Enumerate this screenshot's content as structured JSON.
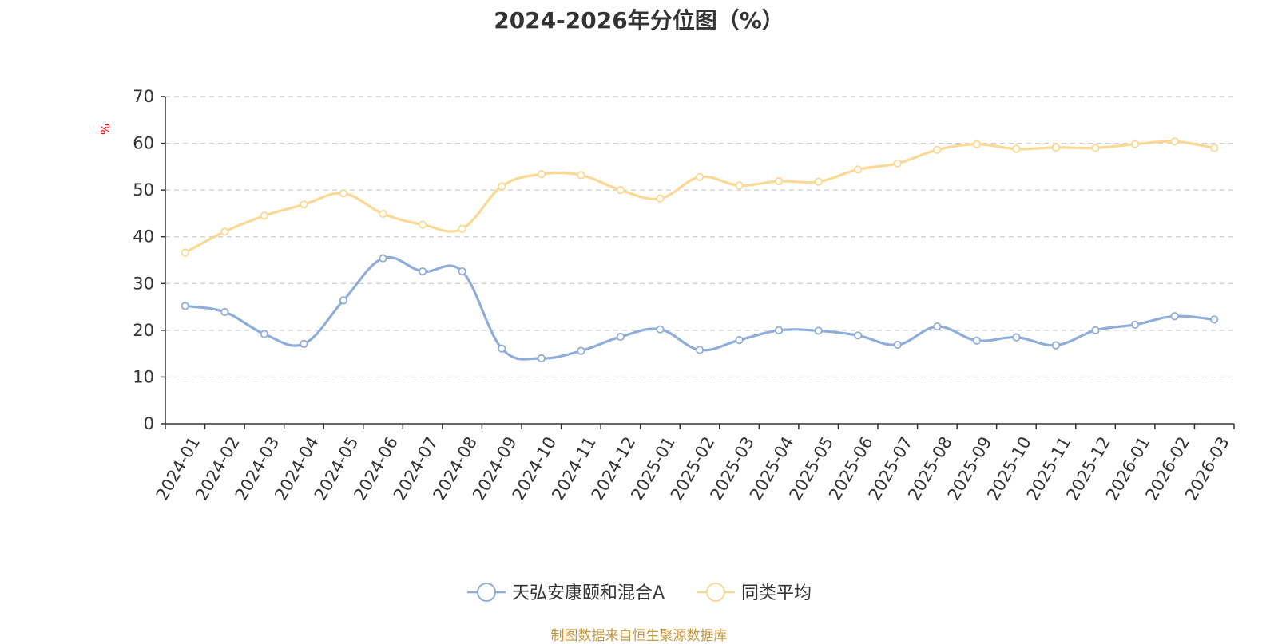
{
  "title": "2024-2026年分位图（%）",
  "source": "制图数据来自恒生聚源数据库",
  "colors": {
    "series1": "#8fadd9",
    "series2": "#fbd893",
    "grid": "#cccccc",
    "axis": "#333333",
    "unit": "#ff0000",
    "source": "#c8963c"
  },
  "chart_data": {
    "type": "line",
    "title": "2024-2026年分位图（%）",
    "ylabel": "%",
    "xlabel": "",
    "ylim": [
      0,
      70
    ],
    "yticks": [
      0,
      10,
      20,
      30,
      40,
      50,
      60,
      70
    ],
    "grid": true,
    "legend_position": "bottom",
    "categories": [
      "2024-01",
      "2024-02",
      "2024-03",
      "2024-04",
      "2024-05",
      "2024-06",
      "2024-07",
      "2024-08",
      "2024-09",
      "2024-10",
      "2024-11",
      "2024-12",
      "2025-01",
      "2025-02",
      "2025-03",
      "2025-04",
      "2025-05",
      "2025-06",
      "2025-07",
      "2025-08",
      "2025-09",
      "2025-10",
      "2025-11",
      "2025-12",
      "2026-01",
      "2026-02",
      "2026-03"
    ],
    "series": [
      {
        "name": "天弘安康颐和混合A",
        "values": [
          25.2,
          23.9,
          19.2,
          17.1,
          26.4,
          35.4,
          32.6,
          32.6,
          16.1,
          14.0,
          15.6,
          18.6,
          20.2,
          15.8,
          17.9,
          20.0,
          19.9,
          18.9,
          16.9,
          20.8,
          17.8,
          18.5,
          16.8,
          20.0,
          21.2,
          23.0,
          22.3
        ]
      },
      {
        "name": "同类平均",
        "values": [
          36.6,
          41.1,
          44.5,
          46.9,
          49.3,
          44.9,
          42.6,
          41.7,
          50.8,
          53.4,
          53.2,
          50.0,
          48.2,
          52.8,
          51.0,
          51.9,
          51.8,
          54.4,
          55.7,
          58.6,
          59.8,
          58.8,
          59.1,
          59.0,
          59.8,
          60.4,
          59.0
        ]
      }
    ]
  }
}
